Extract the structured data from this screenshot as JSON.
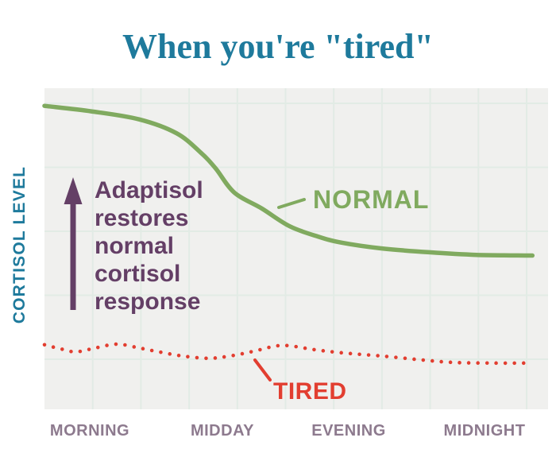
{
  "title": "When you're \"tired\"",
  "colors": {
    "title_teal": "#1e7a9c",
    "normal_green": "#80aa5f",
    "tired_red": "#e23e30",
    "annotation_plum": "#643f66",
    "axis_label_mauve": "#8d7a8e",
    "plot_background": "#f0f0ee",
    "gridline": "#e2ebe5"
  },
  "annotation": {
    "text": "Adaptisol\nrestores\nnormal\ncortisol\nresponse"
  },
  "chart_data": {
    "type": "line",
    "title": "When you're \"tired\"",
    "ylabel": "CORTISOL LEVEL",
    "xlabel": "",
    "x_tick_labels": [
      "MORNING",
      "MIDDAY",
      "EVENING",
      "MIDNIGHT"
    ],
    "y_axis_note": "relative cortisol level 0-100, no numeric ticks shown",
    "x_range": [
      0,
      100
    ],
    "ylim": [
      0,
      100
    ],
    "grid": true,
    "legend_position": "inline labels next to lines",
    "series": [
      {
        "name": "NORMAL",
        "style": "solid",
        "color": "#80aa5f",
        "points": [
          [
            0,
            94.5
          ],
          [
            9.3,
            92.8
          ],
          [
            18.8,
            90.3
          ],
          [
            26.2,
            86.0
          ],
          [
            31.0,
            80.0
          ],
          [
            34.0,
            75.0
          ],
          [
            37.7,
            67.5
          ],
          [
            43.2,
            62.5
          ],
          [
            48.7,
            57.0
          ],
          [
            54.3,
            53.8
          ],
          [
            59.0,
            51.9
          ],
          [
            67.0,
            50.1
          ],
          [
            76.4,
            48.9
          ],
          [
            85.8,
            48.1
          ],
          [
            96.9,
            47.9
          ]
        ]
      },
      {
        "name": "TIRED",
        "style": "dotted",
        "color": "#e23e30",
        "points": [
          [
            0,
            20.1
          ],
          [
            3.0,
            18.9
          ],
          [
            6.2,
            17.9
          ],
          [
            10.1,
            19.1
          ],
          [
            14.4,
            20.3
          ],
          [
            18.8,
            19.1
          ],
          [
            22.7,
            17.9
          ],
          [
            27.4,
            16.6
          ],
          [
            32.5,
            15.9
          ],
          [
            36.9,
            16.6
          ],
          [
            41.6,
            18.1
          ],
          [
            47.2,
            19.9
          ],
          [
            53.5,
            18.6
          ],
          [
            59.0,
            17.6
          ],
          [
            66.9,
            16.6
          ],
          [
            74.8,
            15.4
          ],
          [
            81.1,
            14.6
          ],
          [
            89.0,
            14.4
          ],
          [
            96.9,
            14.4
          ]
        ]
      }
    ]
  }
}
